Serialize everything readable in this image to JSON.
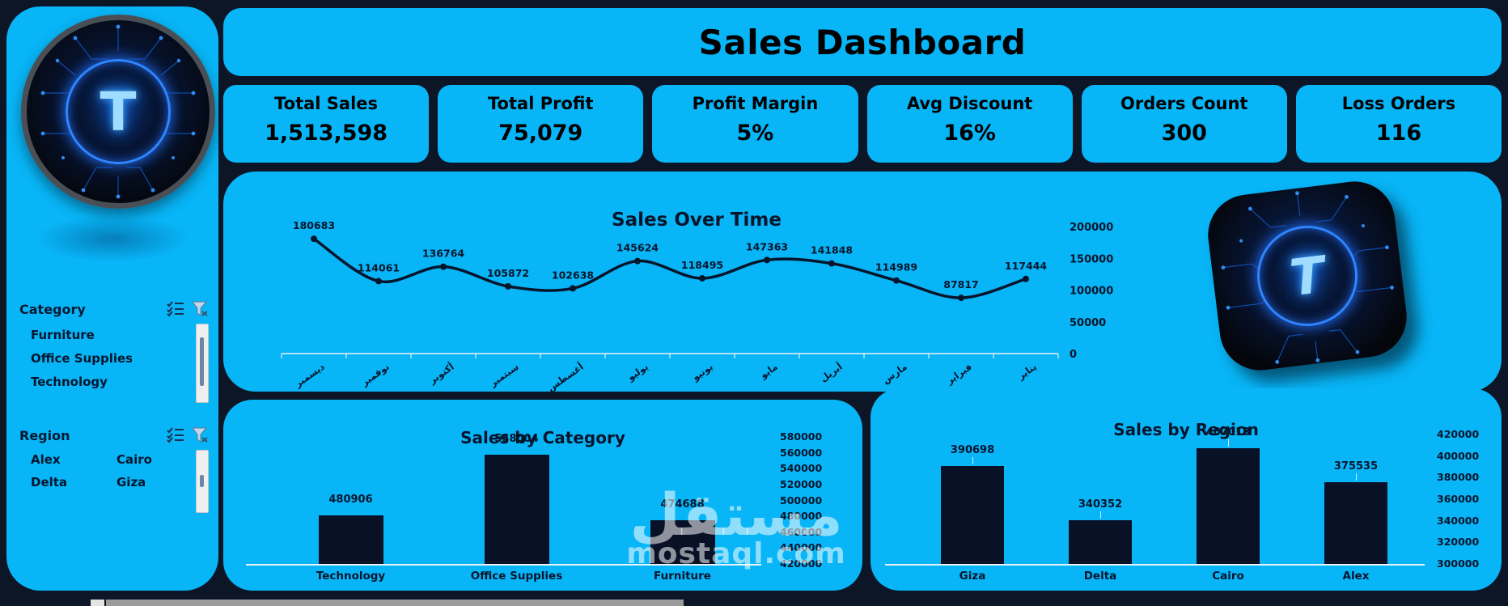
{
  "app": {
    "title": "Sales Dashboard"
  },
  "kpis": [
    {
      "label": "Total Sales",
      "value": "1,513,598"
    },
    {
      "label": "Total Profit",
      "value": "75,079"
    },
    {
      "label": "Profit Margin",
      "value": "5%"
    },
    {
      "label": "Avg Discount",
      "value": "16%"
    },
    {
      "label": "Orders Count",
      "value": "300"
    },
    {
      "label": "Loss Orders",
      "value": "116"
    }
  ],
  "sidebar": {
    "logo_letter": "T",
    "category_slicer": {
      "title": "Category",
      "icons": [
        "multi-select-icon",
        "clear-filter-icon"
      ],
      "items": [
        "Furniture",
        "Office Supplies",
        "Technology"
      ]
    },
    "region_slicer": {
      "title": "Region",
      "icons": [
        "multi-select-icon",
        "clear-filter-icon"
      ],
      "col1": [
        "Alex",
        "Delta"
      ],
      "col2": [
        "Cairo",
        "Giza"
      ]
    }
  },
  "chart_data": [
    {
      "type": "line",
      "title": "Sales Over Time",
      "categories": [
        "ديسمبر",
        "نوفمبر",
        "أكتوبر",
        "سبتمبر",
        "أغسطس",
        "يوليو",
        "يونيو",
        "مايو",
        "أبريل",
        "مارس",
        "فبراير",
        "يناير"
      ],
      "values": [
        180683,
        114061,
        136764,
        105872,
        102638,
        145624,
        118495,
        147363,
        141848,
        114989,
        87817,
        117444
      ],
      "ylim": [
        0,
        200000
      ],
      "ytick_step": 50000,
      "axis_side": "right",
      "data_labels": true,
      "legend": "none",
      "grid": false
    },
    {
      "type": "bar",
      "title": "Sales by Category",
      "categories": [
        "Technology",
        "Office Supplies",
        "Furniture"
      ],
      "values": [
        480906,
        558004,
        474688
      ],
      "ylim": [
        420000,
        580000
      ],
      "ytick_step": 20000,
      "axis_side": "right",
      "data_labels": true,
      "grid": false
    },
    {
      "type": "bar",
      "title": "Sales by Region",
      "categories": [
        "Giza",
        "Delta",
        "Cairo",
        "Alex"
      ],
      "values": [
        390698,
        340352,
        407013,
        375535
      ],
      "ylim": [
        300000,
        420000
      ],
      "ytick_step": 20000,
      "axis_side": "right",
      "data_labels": true,
      "grid": false
    }
  ],
  "watermark": {
    "arabic": "مستقل",
    "latin": "mostaql.com"
  },
  "colors": {
    "panel_cyan": "#08b5f7",
    "background": "#0d1626",
    "ink": "#07152c",
    "bar_fill": "#081126",
    "axis_line": "#e8f2f8"
  }
}
